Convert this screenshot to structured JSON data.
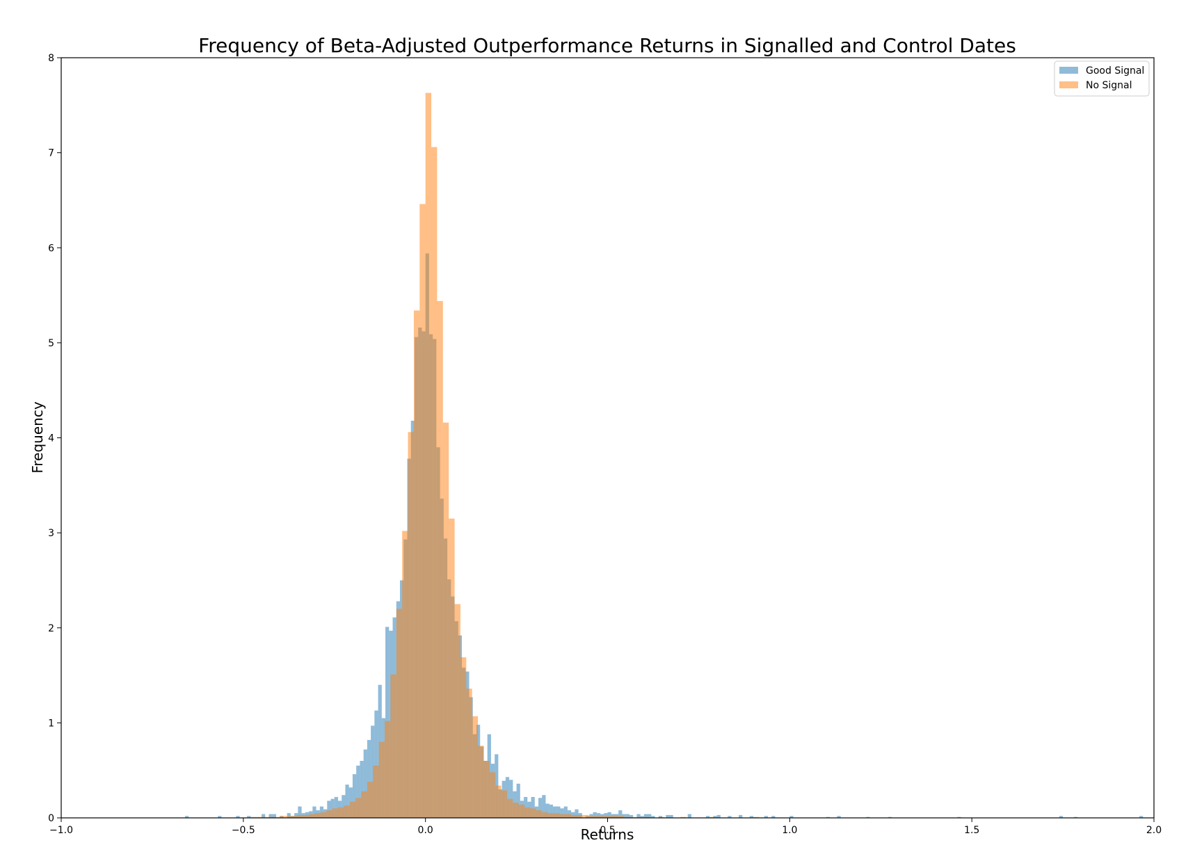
{
  "chart_data": {
    "type": "bar",
    "title": "Frequency of Beta-Adjusted Outperformance Returns in Signalled and Control Dates",
    "xlabel": "Returns",
    "ylabel": "Frequency",
    "xlim": [
      -1.0,
      2.0
    ],
    "ylim": [
      0,
      8
    ],
    "xticks": [
      "−1.0",
      "−0.5",
      "0.0",
      "0.5",
      "1.0",
      "1.5",
      "2.0"
    ],
    "yticks": [
      "0",
      "1",
      "2",
      "3",
      "4",
      "5",
      "6",
      "7",
      "8"
    ],
    "legend_position": "top-right",
    "grid": false,
    "series": [
      {
        "name": "Good Signal",
        "color": "#1f77b4",
        "alpha": 0.5,
        "bin_width": 0.01,
        "x": [
          -0.66,
          -0.57,
          -0.52,
          -0.49,
          -0.45,
          -0.43,
          -0.42,
          -0.4,
          -0.38,
          -0.37,
          -0.36,
          -0.35,
          -0.34,
          -0.33,
          -0.32,
          -0.31,
          -0.3,
          -0.29,
          -0.28,
          -0.27,
          -0.26,
          -0.25,
          -0.24,
          -0.23,
          -0.22,
          -0.21,
          -0.2,
          -0.19,
          -0.18,
          -0.17,
          -0.16,
          -0.15,
          -0.14,
          -0.13,
          -0.12,
          -0.11,
          -0.1,
          -0.09,
          -0.08,
          -0.07,
          -0.06,
          -0.05,
          -0.04,
          -0.03,
          -0.02,
          -0.01,
          0.0,
          0.01,
          0.02,
          0.03,
          0.04,
          0.05,
          0.06,
          0.07,
          0.08,
          0.09,
          0.1,
          0.11,
          0.12,
          0.13,
          0.14,
          0.15,
          0.16,
          0.17,
          0.18,
          0.19,
          0.2,
          0.21,
          0.22,
          0.23,
          0.24,
          0.25,
          0.26,
          0.27,
          0.28,
          0.29,
          0.3,
          0.31,
          0.32,
          0.33,
          0.34,
          0.35,
          0.36,
          0.37,
          0.38,
          0.39,
          0.4,
          0.41,
          0.42,
          0.44,
          0.45,
          0.46,
          0.47,
          0.48,
          0.49,
          0.5,
          0.51,
          0.52,
          0.53,
          0.54,
          0.55,
          0.56,
          0.58,
          0.59,
          0.6,
          0.61,
          0.62,
          0.64,
          0.66,
          0.67,
          0.72,
          0.77,
          0.79,
          0.8,
          0.83,
          0.86,
          0.89,
          0.93,
          0.95,
          1.0,
          1.1,
          1.13,
          1.21,
          1.27,
          1.46,
          1.74,
          1.78,
          1.96
        ],
        "values": [
          0.02,
          0.02,
          0.02,
          0.02,
          0.04,
          0.04,
          0.04,
          0.02,
          0.05,
          0.02,
          0.05,
          0.12,
          0.05,
          0.06,
          0.07,
          0.12,
          0.08,
          0.12,
          0.09,
          0.18,
          0.2,
          0.22,
          0.18,
          0.24,
          0.35,
          0.32,
          0.46,
          0.55,
          0.6,
          0.72,
          0.82,
          0.97,
          1.13,
          1.4,
          1.05,
          2.01,
          1.97,
          2.11,
          2.28,
          2.5,
          2.93,
          3.78,
          4.18,
          5.06,
          5.16,
          5.12,
          5.94,
          5.09,
          5.04,
          3.9,
          3.36,
          2.94,
          2.51,
          2.33,
          2.07,
          1.92,
          1.58,
          1.54,
          1.27,
          0.88,
          0.98,
          0.75,
          0.6,
          0.88,
          0.57,
          0.67,
          0.3,
          0.39,
          0.43,
          0.4,
          0.28,
          0.36,
          0.18,
          0.22,
          0.17,
          0.22,
          0.12,
          0.21,
          0.24,
          0.15,
          0.14,
          0.12,
          0.12,
          0.1,
          0.12,
          0.08,
          0.06,
          0.09,
          0.05,
          0.02,
          0.04,
          0.06,
          0.05,
          0.04,
          0.05,
          0.06,
          0.04,
          0.04,
          0.08,
          0.04,
          0.04,
          0.03,
          0.04,
          0.02,
          0.04,
          0.04,
          0.02,
          0.02,
          0.03,
          0.03,
          0.04,
          0.02,
          0.02,
          0.03,
          0.02,
          0.03,
          0.02,
          0.02,
          0.02,
          0.02,
          0.01,
          0.02,
          0.01,
          0.01,
          0.01,
          0.02,
          0.01,
          0.02
        ]
      },
      {
        "name": "No Signal",
        "color": "#ff7f0e",
        "alpha": 0.5,
        "bin_width": 0.016,
        "x": [
          -0.48,
          -0.464,
          -0.448,
          -0.432,
          -0.416,
          -0.4,
          -0.384,
          -0.368,
          -0.352,
          -0.336,
          -0.32,
          -0.304,
          -0.288,
          -0.272,
          -0.256,
          -0.24,
          -0.224,
          -0.208,
          -0.192,
          -0.176,
          -0.16,
          -0.144,
          -0.128,
          -0.112,
          -0.096,
          -0.08,
          -0.064,
          -0.048,
          -0.032,
          -0.016,
          0.0,
          0.016,
          0.032,
          0.048,
          0.064,
          0.08,
          0.096,
          0.112,
          0.128,
          0.144,
          0.16,
          0.176,
          0.192,
          0.208,
          0.224,
          0.24,
          0.256,
          0.272,
          0.288,
          0.304,
          0.32,
          0.336,
          0.352,
          0.368,
          0.384,
          0.4,
          0.416,
          0.432,
          0.448,
          0.464,
          0.48,
          0.496,
          0.512,
          0.528,
          0.544,
          0.56,
          0.576,
          0.6,
          0.64,
          0.7,
          0.78,
          0.9
        ],
        "values": [
          0.01,
          0.01,
          0.01,
          0.01,
          0.01,
          0.02,
          0.02,
          0.02,
          0.03,
          0.03,
          0.04,
          0.05,
          0.06,
          0.08,
          0.1,
          0.11,
          0.13,
          0.17,
          0.21,
          0.28,
          0.38,
          0.55,
          0.8,
          1.02,
          1.51,
          2.2,
          3.02,
          4.06,
          5.34,
          6.46,
          7.63,
          7.06,
          5.44,
          4.16,
          3.15,
          2.25,
          1.69,
          1.36,
          1.07,
          0.76,
          0.6,
          0.48,
          0.34,
          0.29,
          0.2,
          0.16,
          0.14,
          0.11,
          0.1,
          0.08,
          0.06,
          0.05,
          0.05,
          0.04,
          0.04,
          0.03,
          0.03,
          0.03,
          0.02,
          0.02,
          0.02,
          0.02,
          0.02,
          0.02,
          0.01,
          0.01,
          0.01,
          0.01,
          0.01,
          0.01,
          0.01,
          0.01
        ]
      }
    ]
  }
}
